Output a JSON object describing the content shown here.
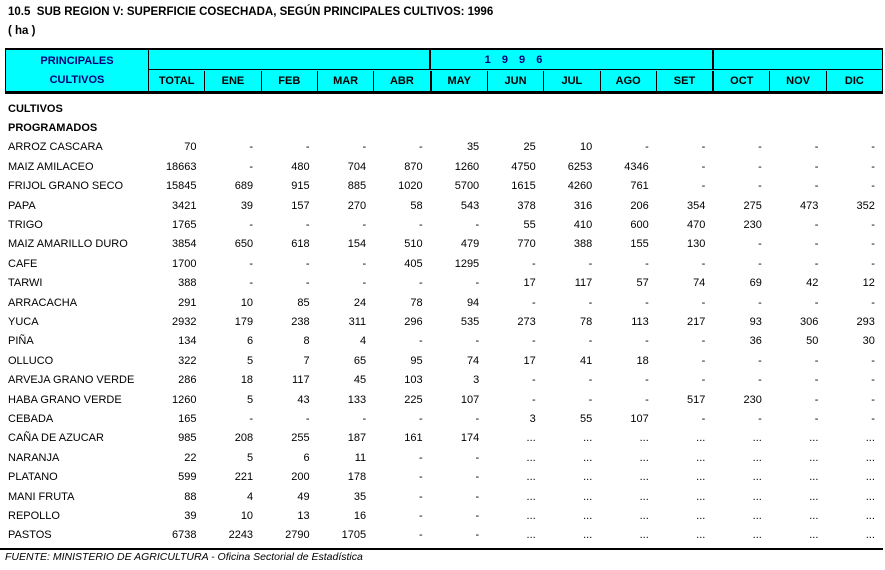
{
  "title": "10.5  SUB REGION V: SUPERFICIE COSECHADA, SEGÚN PRINCIPALES CULTIVOS: 1996",
  "unit": "( ha )",
  "colors": {
    "header_bg": "#00ffff",
    "header_text": "#00007b"
  },
  "table": {
    "corner_line1": "PRINCIPALES",
    "corner_line2": "CULTIVOS",
    "year_header": "1 9 9 6",
    "columns": [
      "TOTAL",
      "ENE",
      "FEB",
      "MAR",
      "ABR",
      "MAY",
      "JUN",
      "JUL",
      "AGO",
      "SET",
      "OCT",
      "NOV",
      "DIC"
    ],
    "section_rows": [
      "CULTIVOS",
      "PROGRAMADOS"
    ],
    "rows": [
      {
        "name": "ARROZ CASCARA",
        "values": [
          "70",
          "-",
          "-",
          "-",
          "-",
          "35",
          "25",
          "10",
          "-",
          "-",
          "-",
          "-",
          "-"
        ]
      },
      {
        "name": "MAIZ AMILACEO",
        "values": [
          "18663",
          "-",
          "480",
          "704",
          "870",
          "1260",
          "4750",
          "6253",
          "4346",
          "-",
          "-",
          "-",
          "-"
        ]
      },
      {
        "name": "FRIJOL GRANO SECO",
        "values": [
          "15845",
          "689",
          "915",
          "885",
          "1020",
          "5700",
          "1615",
          "4260",
          "761",
          "-",
          "-",
          "-",
          "-"
        ]
      },
      {
        "name": "PAPA",
        "values": [
          "3421",
          "39",
          "157",
          "270",
          "58",
          "543",
          "378",
          "316",
          "206",
          "354",
          "275",
          "473",
          "352"
        ]
      },
      {
        "name": "TRIGO",
        "values": [
          "1765",
          "-",
          "-",
          "-",
          "-",
          "-",
          "55",
          "410",
          "600",
          "470",
          "230",
          "-",
          "-"
        ]
      },
      {
        "name": "MAIZ AMARILLO DURO",
        "values": [
          "3854",
          "650",
          "618",
          "154",
          "510",
          "479",
          "770",
          "388",
          "155",
          "130",
          "-",
          "-",
          "-"
        ]
      },
      {
        "name": "CAFE",
        "values": [
          "1700",
          "-",
          "-",
          "-",
          "405",
          "1295",
          "-",
          "-",
          "-",
          "-",
          "-",
          "-",
          "-"
        ]
      },
      {
        "name": "TARWI",
        "values": [
          "388",
          "-",
          "-",
          "-",
          "-",
          "-",
          "17",
          "117",
          "57",
          "74",
          "69",
          "42",
          "12"
        ]
      },
      {
        "name": "ARRACACHA",
        "values": [
          "291",
          "10",
          "85",
          "24",
          "78",
          "94",
          "-",
          "-",
          "-",
          "-",
          "-",
          "-",
          "-"
        ]
      },
      {
        "name": "YUCA",
        "values": [
          "2932",
          "179",
          "238",
          "311",
          "296",
          "535",
          "273",
          "78",
          "113",
          "217",
          "93",
          "306",
          "293"
        ]
      },
      {
        "name": "PIÑA",
        "values": [
          "134",
          "6",
          "8",
          "4",
          "-",
          "-",
          "-",
          "-",
          "-",
          "-",
          "36",
          "50",
          "30"
        ]
      },
      {
        "name": "OLLUCO",
        "values": [
          "322",
          "5",
          "7",
          "65",
          "95",
          "74",
          "17",
          "41",
          "18",
          "-",
          "-",
          "-",
          "-"
        ]
      },
      {
        "name": "ARVEJA GRANO VERDE",
        "values": [
          "286",
          "18",
          "117",
          "45",
          "103",
          "3",
          "-",
          "-",
          "-",
          "-",
          "-",
          "-",
          "-"
        ]
      },
      {
        "name": "HABA GRANO VERDE",
        "values": [
          "1260",
          "5",
          "43",
          "133",
          "225",
          "107",
          "-",
          "-",
          "-",
          "517",
          "230",
          "-",
          "-"
        ]
      },
      {
        "name": "CEBADA",
        "values": [
          "165",
          "-",
          "-",
          "-",
          "-",
          "-",
          "3",
          "55",
          "107",
          "-",
          "-",
          "-",
          "-"
        ]
      },
      {
        "name": "CAÑA DE AZUCAR",
        "values": [
          "985",
          "208",
          "255",
          "187",
          "161",
          "174",
          "...",
          "...",
          "...",
          "...",
          "...",
          "...",
          "..."
        ]
      },
      {
        "name": "NARANJA",
        "values": [
          "22",
          "5",
          "6",
          "11",
          "-",
          "-",
          "...",
          "...",
          "...",
          "...",
          "...",
          "...",
          "..."
        ]
      },
      {
        "name": "PLATANO",
        "values": [
          "599",
          "221",
          "200",
          "178",
          "-",
          "-",
          "...",
          "...",
          "...",
          "...",
          "...",
          "...",
          "..."
        ]
      },
      {
        "name": "MANI FRUTA",
        "values": [
          "88",
          "4",
          "49",
          "35",
          "-",
          "-",
          "...",
          "...",
          "...",
          "...",
          "...",
          "...",
          "..."
        ]
      },
      {
        "name": "REPOLLO",
        "values": [
          "39",
          "10",
          "13",
          "16",
          "-",
          "-",
          "...",
          "...",
          "...",
          "...",
          "...",
          "...",
          "..."
        ]
      },
      {
        "name": "PASTOS",
        "values": [
          "6738",
          "2243",
          "2790",
          "1705",
          "-",
          "-",
          "...",
          "...",
          "...",
          "...",
          "...",
          "...",
          "..."
        ]
      }
    ]
  },
  "footer": "FUENTE: MINISTERIO DE AGRICULTURA - Oficina Sectorial de Estadística"
}
